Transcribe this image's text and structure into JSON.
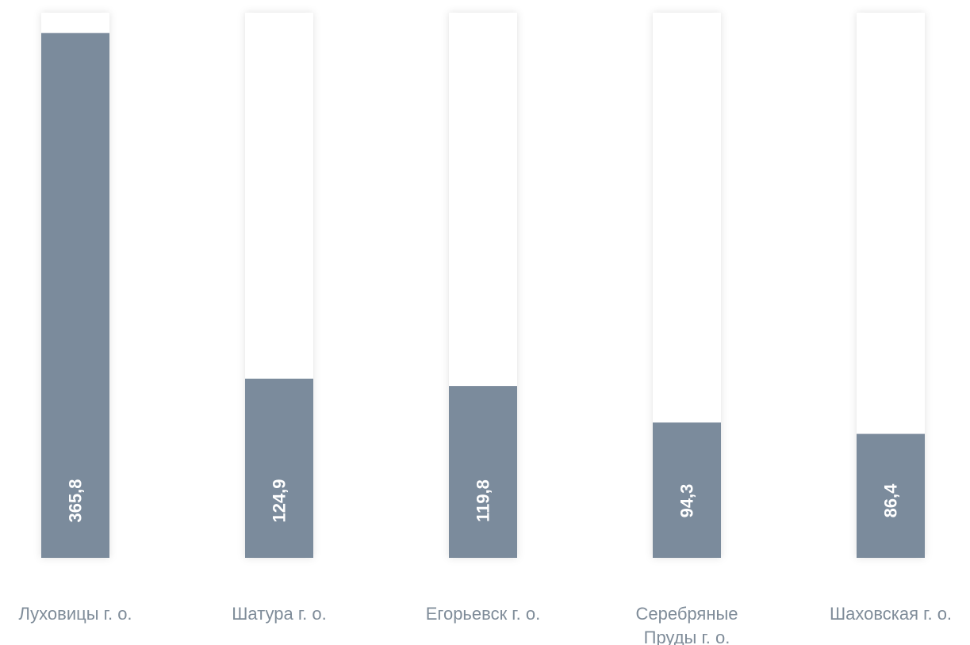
{
  "chart_data": {
    "type": "bar",
    "orientation": "vertical",
    "categories": [
      [
        "Луховицы г. о."
      ],
      [
        "Шатура г. о."
      ],
      [
        "Егорьевск г. о."
      ],
      [
        "Серебряные",
        "Пруды г. о."
      ],
      [
        "Шаховская г. о."
      ]
    ],
    "values": [
      365.8,
      124.9,
      119.8,
      94.3,
      86.4
    ],
    "value_labels": [
      "365,8",
      "124,9",
      "119,8",
      "94,3",
      "86,4"
    ],
    "ylim": [
      0,
      380
    ],
    "grid": false,
    "legend": "none",
    "colors": {
      "bar": "#7b8b9c",
      "track": "#ffffff",
      "value_text": "#ffffff",
      "category_text": "#7f8c99"
    }
  }
}
